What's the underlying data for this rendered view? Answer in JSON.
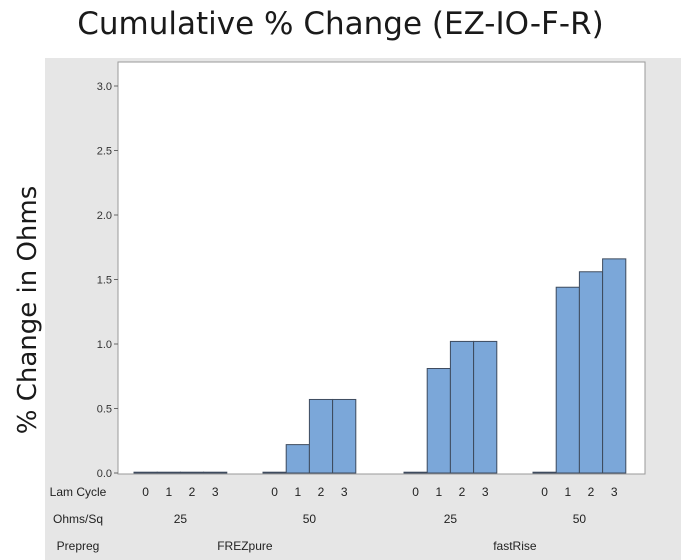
{
  "chart_data": {
    "type": "bar",
    "title": "Cumulative % Change (EZ-IO-F-R)",
    "ylabel": "% Change in Ohms",
    "xlabel": "",
    "ylim": [
      0,
      3.0
    ],
    "yticks": [
      "0.0",
      "0.5",
      "1.0",
      "1.5",
      "2.0",
      "2.5",
      "3.0"
    ],
    "grid": false,
    "row_labels": {
      "lam_cycle": "Lam Cycle",
      "ohms_sq": "Ohms/Sq",
      "prepreg": "Prepreg"
    },
    "groups": [
      {
        "prepreg": "FREZpure",
        "ohms_sq": "25",
        "lam_cycles": [
          "0",
          "1",
          "2",
          "3"
        ],
        "values": [
          0.0,
          0.0,
          0.0,
          0.0
        ]
      },
      {
        "prepreg": "FREZpure",
        "ohms_sq": "50",
        "lam_cycles": [
          "0",
          "1",
          "2",
          "3"
        ],
        "values": [
          0.0,
          0.22,
          0.57,
          0.57
        ]
      },
      {
        "prepreg": "fastRise",
        "ohms_sq": "25",
        "lam_cycles": [
          "0",
          "1",
          "2",
          "3"
        ],
        "values": [
          0.0,
          0.81,
          1.02,
          1.02
        ]
      },
      {
        "prepreg": "fastRise",
        "ohms_sq": "50",
        "lam_cycles": [
          "0",
          "1",
          "2",
          "3"
        ],
        "values": [
          0.0,
          1.44,
          1.56,
          1.66
        ]
      }
    ],
    "prepreg_labels": [
      "FREZpure",
      "fastRise"
    ],
    "colors": {
      "bar_fill": "#7ba7d9",
      "bar_stroke": "#3e4b5e",
      "panel_bg": "#e6e6e6",
      "plot_bg": "#ffffff"
    }
  }
}
